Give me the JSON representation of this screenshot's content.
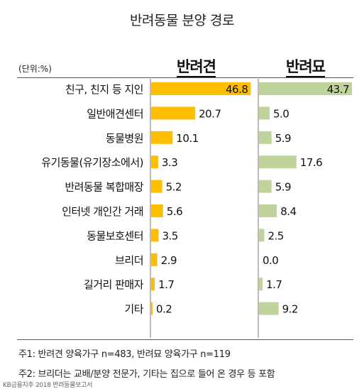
{
  "chart_data": {
    "type": "bar",
    "orientation": "horizontal",
    "title": "반려동물 분양 경로",
    "unit_label": "(단위:%)",
    "categories": [
      "친구, 친지 등 지인",
      "일반애견센터",
      "동물병원",
      "유기동물(유기장소에서)",
      "반려동물 복합매장",
      "인터넷 개인간 거래",
      "동물보호센터",
      "브리더",
      "길거리 판매자",
      "기타"
    ],
    "series": [
      {
        "name": "반려견",
        "color": "#FFBE00",
        "values": [
          "46.8",
          "20.7",
          "10.1",
          "3.3",
          "5.2",
          "5.6",
          "3.5",
          "2.9",
          "1.7",
          "0.2"
        ]
      },
      {
        "name": "반려묘",
        "color": "#BFD39A",
        "values": [
          "43.7",
          "5.0",
          "5.9",
          "17.6",
          "5.9",
          "8.4",
          "2.5",
          "0.0",
          "1.7",
          "9.2"
        ]
      }
    ]
  },
  "notes": [
    "주1: 반려견 양육가구 n=483, 반려묘 양육가구 n=119",
    "주2: 브리더는 교배/분양 전문가, 기타는 집으로 들어 온 경우 등 포함"
  ],
  "source": "KB금융지주 2018 반려동물보고서"
}
